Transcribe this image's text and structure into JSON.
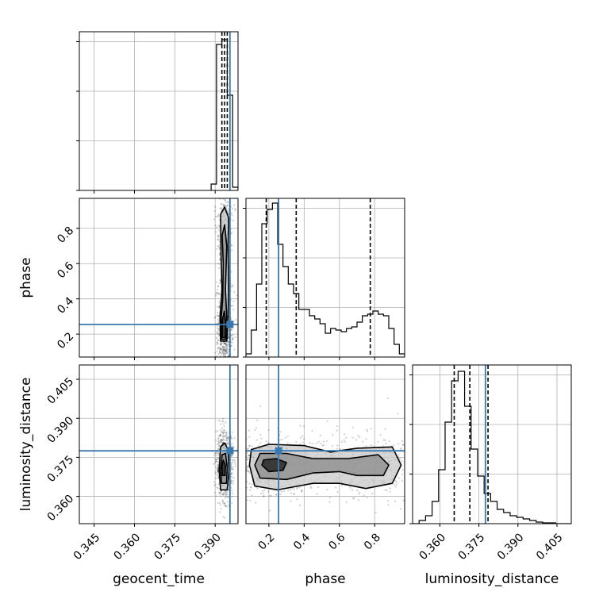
{
  "chart_data": {
    "type": "corner",
    "colors": {
      "truth": "#3a78b0",
      "hist": "#000000",
      "grid": "#b0b0b0",
      "scatter": "#000000"
    },
    "params": [
      {
        "name": "geocent_time",
        "label": "geocent_time",
        "range": [
          0.3395,
          0.3985
        ],
        "ticks": [
          0.345,
          0.36,
          0.375,
          0.39
        ],
        "tick_labels": [
          "0.345",
          "0.360",
          "0.375",
          "0.390"
        ]
      },
      {
        "name": "phase",
        "label": "phase",
        "range": [
          0.07,
          0.97
        ],
        "ticks": [
          0.2,
          0.4,
          0.6,
          0.8
        ],
        "tick_labels": [
          "0.2",
          "0.4",
          "0.6",
          "0.8"
        ]
      },
      {
        "name": "luminosity_distance",
        "label": "luminosity_distance",
        "range": [
          0.3495,
          0.4105
        ],
        "ticks": [
          0.36,
          0.375,
          0.39,
          0.405
        ],
        "tick_labels": [
          "0.360",
          "0.375",
          "0.390",
          "0.405"
        ]
      }
    ],
    "truths": [
      0.3955,
      0.255,
      0.3775
    ],
    "quantiles": [
      [
        0.3925,
        0.3935,
        0.3945
      ],
      [
        0.185,
        0.355,
        0.775
      ],
      [
        0.3655,
        0.3715,
        0.3785
      ]
    ],
    "hist1d": [
      {
        "edges": [
          0.3885,
          0.3905,
          0.3925,
          0.3945,
          0.3965,
          0.3985
        ],
        "counts": [
          0.04,
          0.92,
          0.95,
          0.6,
          0.02
        ]
      },
      {
        "edges": [
          0.07,
          0.1,
          0.13,
          0.16,
          0.19,
          0.22,
          0.25,
          0.28,
          0.31,
          0.34,
          0.37,
          0.4,
          0.43,
          0.46,
          0.49,
          0.52,
          0.55,
          0.58,
          0.61,
          0.64,
          0.67,
          0.7,
          0.73,
          0.76,
          0.79,
          0.82,
          0.85,
          0.88,
          0.91,
          0.94,
          0.97
        ],
        "counts": [
          0.02,
          0.17,
          0.46,
          0.84,
          0.93,
          0.97,
          0.71,
          0.57,
          0.46,
          0.4,
          0.3,
          0.3,
          0.26,
          0.24,
          0.21,
          0.15,
          0.18,
          0.17,
          0.16,
          0.18,
          0.19,
          0.22,
          0.26,
          0.27,
          0.29,
          0.27,
          0.26,
          0.18,
          0.08,
          0.02
        ]
      },
      {
        "edges": [
          0.3495,
          0.352,
          0.3545,
          0.357,
          0.3595,
          0.362,
          0.3645,
          0.367,
          0.3695,
          0.372,
          0.3745,
          0.377,
          0.3795,
          0.382,
          0.3845,
          0.387,
          0.3895,
          0.392,
          0.3945,
          0.397,
          0.3995,
          0.402,
          0.4045,
          0.407,
          0.4105
        ],
        "counts": [
          0.0,
          0.02,
          0.05,
          0.14,
          0.34,
          0.64,
          0.9,
          0.96,
          0.74,
          0.47,
          0.3,
          0.19,
          0.14,
          0.09,
          0.07,
          0.05,
          0.04,
          0.03,
          0.02,
          0.01,
          0.005,
          0.005,
          0.0,
          0.0
        ]
      }
    ],
    "scatter": {
      "phase_vs_geocent_time": {
        "x_center": 0.3935,
        "x_spread": 0.0015,
        "y_modes": [
          [
            0.22,
            0.12
          ],
          [
            0.78,
            0.12
          ]
        ],
        "y_range": [
          0.07,
          0.97
        ]
      },
      "luminosity_distance_vs_geocent_time": {
        "x_center": 0.3935,
        "x_spread": 0.0015,
        "y_center": 0.372,
        "y_spread": 0.006
      },
      "luminosity_distance_vs_phase": {
        "x_modes": [
          [
            0.22,
            0.12
          ],
          [
            0.78,
            0.12
          ]
        ],
        "y_center": 0.372,
        "y_spread": 0.006
      }
    },
    "contours": {
      "phase_vs_geocent_time": [
        [
          [
            0.392,
            0.16
          ],
          [
            0.3943,
            0.16
          ],
          [
            0.3948,
            0.28
          ],
          [
            0.395,
            0.45
          ],
          [
            0.3948,
            0.7
          ],
          [
            0.395,
            0.86
          ],
          [
            0.3935,
            0.92
          ],
          [
            0.392,
            0.88
          ],
          [
            0.3922,
            0.65
          ],
          [
            0.3925,
            0.45
          ],
          [
            0.3918,
            0.3
          ],
          [
            0.392,
            0.16
          ]
        ],
        [
          [
            0.3924,
            0.17
          ],
          [
            0.394,
            0.17
          ],
          [
            0.3943,
            0.3
          ],
          [
            0.3938,
            0.45
          ],
          [
            0.3943,
            0.7
          ],
          [
            0.3935,
            0.82
          ],
          [
            0.3926,
            0.76
          ],
          [
            0.393,
            0.6
          ],
          [
            0.3928,
            0.4
          ],
          [
            0.3922,
            0.28
          ],
          [
            0.3924,
            0.17
          ]
        ],
        [
          [
            0.3926,
            0.18
          ],
          [
            0.3938,
            0.18
          ],
          [
            0.394,
            0.26
          ],
          [
            0.3934,
            0.33
          ],
          [
            0.3927,
            0.28
          ],
          [
            0.3926,
            0.18
          ]
        ]
      ],
      "luminosity_distance_vs_geocent_time": [
        [
          [
            0.392,
            0.3625
          ],
          [
            0.3945,
            0.3625
          ],
          [
            0.3952,
            0.37
          ],
          [
            0.3948,
            0.378
          ],
          [
            0.3935,
            0.3805
          ],
          [
            0.392,
            0.379
          ],
          [
            0.3915,
            0.37
          ],
          [
            0.392,
            0.3625
          ]
        ],
        [
          [
            0.3924,
            0.365
          ],
          [
            0.3942,
            0.365
          ],
          [
            0.3945,
            0.371
          ],
          [
            0.3938,
            0.3765
          ],
          [
            0.3926,
            0.376
          ],
          [
            0.392,
            0.37
          ],
          [
            0.3924,
            0.365
          ]
        ],
        [
          [
            0.3927,
            0.368
          ],
          [
            0.3937,
            0.368
          ],
          [
            0.3938,
            0.372
          ],
          [
            0.393,
            0.374
          ],
          [
            0.3925,
            0.3715
          ],
          [
            0.3927,
            0.368
          ]
        ]
      ],
      "luminosity_distance_vs_phase": [
        [
          [
            0.09,
            0.372
          ],
          [
            0.12,
            0.364
          ],
          [
            0.25,
            0.3625
          ],
          [
            0.45,
            0.365
          ],
          [
            0.6,
            0.365
          ],
          [
            0.75,
            0.363
          ],
          [
            0.9,
            0.365
          ],
          [
            0.95,
            0.372
          ],
          [
            0.9,
            0.379
          ],
          [
            0.7,
            0.3785
          ],
          [
            0.55,
            0.377
          ],
          [
            0.4,
            0.3795
          ],
          [
            0.2,
            0.38
          ],
          [
            0.1,
            0.378
          ],
          [
            0.09,
            0.372
          ]
        ],
        [
          [
            0.12,
            0.372
          ],
          [
            0.15,
            0.367
          ],
          [
            0.3,
            0.3665
          ],
          [
            0.45,
            0.369
          ],
          [
            0.6,
            0.3695
          ],
          [
            0.7,
            0.368
          ],
          [
            0.85,
            0.368
          ],
          [
            0.88,
            0.372
          ],
          [
            0.82,
            0.376
          ],
          [
            0.65,
            0.3745
          ],
          [
            0.45,
            0.3745
          ],
          [
            0.3,
            0.3765
          ],
          [
            0.15,
            0.3765
          ],
          [
            0.12,
            0.372
          ]
        ],
        [
          [
            0.16,
            0.372
          ],
          [
            0.2,
            0.3695
          ],
          [
            0.28,
            0.37
          ],
          [
            0.3,
            0.373
          ],
          [
            0.24,
            0.3745
          ],
          [
            0.17,
            0.374
          ],
          [
            0.16,
            0.372
          ]
        ]
      ]
    }
  }
}
